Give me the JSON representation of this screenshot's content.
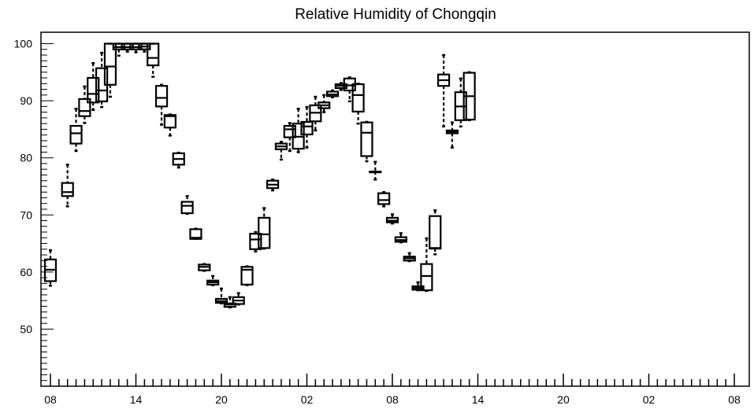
{
  "chart_data": {
    "type": "boxplot",
    "title": "Relative Humidity of Chongqin",
    "xlabel": "",
    "ylabel": "",
    "ylim": [
      40,
      102
    ],
    "yticks": [
      50,
      60,
      70,
      80,
      90,
      100
    ],
    "xlim": [
      0,
      80
    ],
    "xticks": [
      {
        "x": 0,
        "label": "08"
      },
      {
        "x": 10,
        "label": "14"
      },
      {
        "x": 20,
        "label": "20"
      },
      {
        "x": 30,
        "label": "02"
      },
      {
        "x": 40,
        "label": "08"
      },
      {
        "x": 50,
        "label": "14"
      },
      {
        "x": 60,
        "label": "20"
      },
      {
        "x": 70,
        "label": "02"
      },
      {
        "x": 80,
        "label": "08"
      }
    ],
    "series": [
      {
        "values": [
          {
            "x": 0,
            "min": 57.6,
            "q1": 58.4,
            "median": 60.4,
            "q3": 62.2,
            "max": 63.8
          },
          {
            "x": 2,
            "min": 71.5,
            "q1": 73.3,
            "median": 74.0,
            "q3": 75.6,
            "max": 78.8
          },
          {
            "x": 3,
            "min": 81.2,
            "q1": 82.5,
            "median": 84.3,
            "q3": 85.6,
            "max": 88.6
          },
          {
            "x": 4,
            "min": 86.1,
            "q1": 87.3,
            "median": 88.2,
            "q3": 90.3,
            "max": 92.5
          },
          {
            "x": 5,
            "min": 88.4,
            "q1": 89.7,
            "median": 91.2,
            "q3": 94.0,
            "max": 96.6
          },
          {
            "x": 6,
            "min": 88.9,
            "q1": 89.9,
            "median": 91.8,
            "q3": 95.7,
            "max": 98.4
          },
          {
            "x": 7,
            "min": 90.7,
            "q1": 92.8,
            "median": 96.0,
            "q3": 100.0,
            "max": 100.0
          },
          {
            "x": 8,
            "min": 97.9,
            "q1": 99.0,
            "median": 99.4,
            "q3": 100.0,
            "max": 100.0
          },
          {
            "x": 9,
            "min": 98.6,
            "q1": 99.0,
            "median": 99.4,
            "q3": 100.0,
            "max": 100.0
          },
          {
            "x": 10,
            "min": 98.5,
            "q1": 99.0,
            "median": 99.4,
            "q3": 100.0,
            "max": 100.0
          },
          {
            "x": 11,
            "min": 98.6,
            "q1": 99.0,
            "median": 99.5,
            "q3": 100.0,
            "max": 100.0
          },
          {
            "x": 12,
            "min": 94.2,
            "q1": 96.2,
            "median": 97.5,
            "q3": 100.0,
            "max": 100.0
          },
          {
            "x": 13,
            "min": 85.8,
            "q1": 89.0,
            "median": 90.5,
            "q3": 92.6,
            "max": 92.8
          },
          {
            "x": 14,
            "min": 83.9,
            "q1": 85.3,
            "median": 87.3,
            "q3": 87.5,
            "max": 87.6
          },
          {
            "x": 15,
            "min": 78.3,
            "q1": 78.8,
            "median": 79.8,
            "q3": 80.8,
            "max": 80.9
          },
          {
            "x": 16,
            "min": 70.2,
            "q1": 70.3,
            "median": 71.6,
            "q3": 72.3,
            "max": 73.3
          },
          {
            "x": 17,
            "min": 65.8,
            "q1": 65.8,
            "median": 66.0,
            "q3": 67.5,
            "max": 67.6
          },
          {
            "x": 18,
            "min": 60.2,
            "q1": 60.3,
            "median": 60.9,
            "q3": 61.3,
            "max": 61.4
          },
          {
            "x": 19,
            "min": 57.7,
            "q1": 57.8,
            "median": 58.2,
            "q3": 58.5,
            "max": 59.3
          },
          {
            "x": 20,
            "min": 54.5,
            "q1": 54.6,
            "median": 54.9,
            "q3": 55.3,
            "max": 57.1
          },
          {
            "x": 21,
            "min": 53.8,
            "q1": 53.9,
            "median": 54.3,
            "q3": 54.5,
            "max": 55.6
          },
          {
            "x": 22,
            "min": 54.3,
            "q1": 54.4,
            "median": 55.0,
            "q3": 55.6,
            "max": 56.3
          },
          {
            "x": 23,
            "min": 57.7,
            "q1": 57.8,
            "median": 60.4,
            "q3": 60.9,
            "max": 61.0
          },
          {
            "x": 24,
            "min": 63.6,
            "q1": 64.0,
            "median": 65.7,
            "q3": 66.7,
            "max": 67.0
          },
          {
            "x": 25,
            "min": 64.1,
            "q1": 64.2,
            "median": 66.6,
            "q3": 69.5,
            "max": 71.2
          },
          {
            "x": 26,
            "min": 74.3,
            "q1": 74.7,
            "median": 75.3,
            "q3": 76.0,
            "max": 76.2
          },
          {
            "x": 27,
            "min": 79.7,
            "q1": 81.5,
            "median": 82.0,
            "q3": 82.5,
            "max": 82.8
          },
          {
            "x": 28,
            "min": 81.2,
            "q1": 83.6,
            "median": 85.0,
            "q3": 85.6,
            "max": 86.1
          },
          {
            "x": 29,
            "min": 81.0,
            "q1": 81.6,
            "median": 83.7,
            "q3": 86.0,
            "max": 88.6
          },
          {
            "x": 30,
            "min": 81.8,
            "q1": 84.1,
            "median": 85.5,
            "q3": 86.3,
            "max": 88.9
          },
          {
            "x": 31,
            "min": 84.8,
            "q1": 86.4,
            "median": 87.9,
            "q3": 89.2,
            "max": 90.7
          },
          {
            "x": 32,
            "min": 88.0,
            "q1": 88.7,
            "median": 89.2,
            "q3": 89.7,
            "max": 91.0
          },
          {
            "x": 33,
            "min": 90.6,
            "q1": 90.8,
            "median": 91.1,
            "q3": 91.6,
            "max": 91.8
          },
          {
            "x": 34,
            "min": 91.9,
            "q1": 92.2,
            "median": 92.6,
            "q3": 92.9,
            "max": 93.1
          },
          {
            "x": 35,
            "min": 89.9,
            "q1": 91.8,
            "median": 92.7,
            "q3": 93.9,
            "max": 94.1
          },
          {
            "x": 36,
            "min": 86.0,
            "q1": 88.1,
            "median": 91.0,
            "q3": 92.9,
            "max": 93.0
          },
          {
            "x": 37,
            "min": 79.4,
            "q1": 80.3,
            "median": 84.4,
            "q3": 86.2,
            "max": 86.3
          },
          {
            "x": 38,
            "min": 76.2,
            "q1": 77.6,
            "median": 77.6,
            "q3": 77.6,
            "max": 79.3
          },
          {
            "x": 39,
            "min": 71.5,
            "q1": 71.9,
            "median": 72.6,
            "q3": 73.8,
            "max": 74.0
          },
          {
            "x": 40,
            "min": 68.5,
            "q1": 68.7,
            "median": 69.0,
            "q3": 69.5,
            "max": 70.1
          },
          {
            "x": 41,
            "min": 65.2,
            "q1": 65.3,
            "median": 65.6,
            "q3": 66.1,
            "max": 66.8
          },
          {
            "x": 42,
            "min": 61.9,
            "q1": 62.0,
            "median": 62.4,
            "q3": 62.7,
            "max": 63.3
          },
          {
            "x": 43,
            "min": 56.8,
            "q1": 56.9,
            "median": 57.2,
            "q3": 57.5,
            "max": 58.2
          },
          {
            "x": 44,
            "min": 56.7,
            "q1": 56.8,
            "median": 59.3,
            "q3": 61.4,
            "max": 65.9
          },
          {
            "x": 45,
            "min": 63.1,
            "q1": 64.1,
            "median": 64.2,
            "q3": 69.8,
            "max": 70.8
          },
          {
            "x": 46,
            "min": 85.5,
            "q1": 92.6,
            "median": 93.6,
            "q3": 94.6,
            "max": 98.0
          },
          {
            "x": 47,
            "min": 81.8,
            "q1": 84.3,
            "median": 84.6,
            "q3": 84.8,
            "max": 86.2
          },
          {
            "x": 48,
            "min": 85.5,
            "q1": 86.6,
            "median": 89.0,
            "q3": 91.5,
            "max": 93.9
          },
          {
            "x": 49,
            "min": 86.6,
            "q1": 86.7,
            "median": 90.8,
            "q3": 94.9,
            "max": 95.0
          }
        ]
      }
    ],
    "grid": false,
    "legend": "none",
    "colors": {
      "stroke": "#000000",
      "background": "#ffffff"
    }
  }
}
